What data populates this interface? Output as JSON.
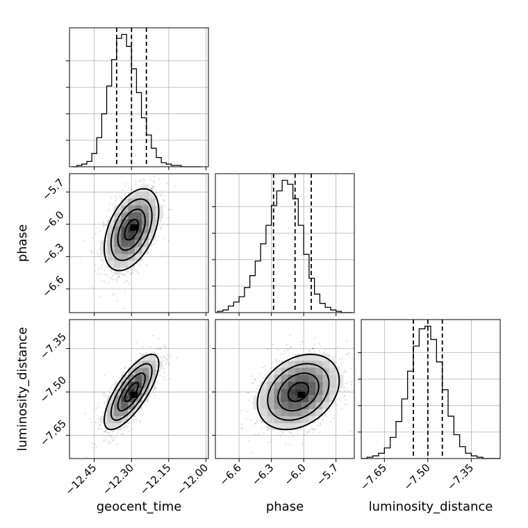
{
  "chart_data": {
    "type": "corner",
    "parameters": [
      {
        "name": "geocent_time",
        "label": "geocent_time",
        "range": [
          -12.55,
          -11.99
        ],
        "ticks": [
          -12.45,
          -12.3,
          -12.15,
          -12.0
        ],
        "tick_labels": [
          "−12.45",
          "−12.30",
          "−12.15",
          "−12.00"
        ],
        "quantiles": [
          -12.36,
          -12.3,
          -12.24
        ],
        "histogram": {
          "bin_edges": [
            -12.54,
            -12.52,
            -12.5,
            -12.48,
            -12.46,
            -12.44,
            -12.42,
            -12.4,
            -12.38,
            -12.36,
            -12.34,
            -12.32,
            -12.3,
            -12.28,
            -12.26,
            -12.24,
            -12.22,
            -12.2,
            -12.18,
            -12.16,
            -12.14,
            -12.12,
            -12.1,
            -12.08,
            -12.06,
            -12.04,
            -12.02
          ],
          "counts": [
            0,
            1,
            2,
            4,
            10,
            22,
            40,
            61,
            81,
            97,
            100,
            91,
            74,
            56,
            37,
            24,
            14,
            7,
            3,
            2,
            1,
            1,
            0,
            0,
            0,
            0
          ]
        }
      },
      {
        "name": "phase",
        "label": "phase",
        "range": [
          -6.82,
          -5.53
        ],
        "ticks": [
          -6.6,
          -6.3,
          -6.0,
          -5.7
        ],
        "tick_labels": [
          "−6.6",
          "−6.3",
          "−6.0",
          "−5.7"
        ],
        "quantiles": [
          -6.28,
          -6.08,
          -5.93
        ],
        "histogram": {
          "bin_edges": [
            -6.8,
            -6.75,
            -6.7,
            -6.65,
            -6.6,
            -6.55,
            -6.5,
            -6.45,
            -6.4,
            -6.35,
            -6.3,
            -6.25,
            -6.2,
            -6.15,
            -6.1,
            -6.05,
            -6.0,
            -5.95,
            -5.9,
            -5.85,
            -5.8,
            -5.75,
            -5.7,
            -5.65,
            -5.6,
            -5.55
          ],
          "counts": [
            1,
            2,
            5,
            8,
            12,
            19,
            28,
            39,
            52,
            66,
            81,
            92,
            100,
            97,
            86,
            66,
            44,
            26,
            14,
            7,
            4,
            2,
            1,
            0,
            0
          ]
        }
      },
      {
        "name": "luminosity_distance",
        "label": "luminosity_distance",
        "range": [
          -7.73,
          -7.25
        ],
        "ticks": [
          -7.65,
          -7.5,
          -7.35
        ],
        "tick_labels": [
          "−7.65",
          "−7.50",
          "−7.35"
        ],
        "quantiles": [
          -7.55,
          -7.5,
          -7.45
        ],
        "histogram": {
          "bin_edges": [
            -7.73,
            -7.71,
            -7.69,
            -7.67,
            -7.65,
            -7.63,
            -7.61,
            -7.59,
            -7.57,
            -7.55,
            -7.53,
            -7.51,
            -7.49,
            -7.47,
            -7.45,
            -7.43,
            -7.41,
            -7.39,
            -7.37,
            -7.35,
            -7.33,
            -7.31,
            -7.29,
            -7.27,
            -7.25
          ],
          "counts": [
            0,
            1,
            2,
            4,
            8,
            16,
            28,
            45,
            66,
            85,
            98,
            100,
            90,
            73,
            52,
            32,
            18,
            9,
            4,
            2,
            1,
            0,
            0,
            0
          ]
        }
      }
    ],
    "pairs": [
      {
        "x": "geocent_time",
        "y": "phase",
        "center": [
          -12.3,
          -6.05
        ],
        "sigma": [
          0.055,
          0.19
        ],
        "correlation": 0.45,
        "peak": [
          -12.29,
          -6.03
        ]
      },
      {
        "x": "geocent_time",
        "y": "luminosity_distance",
        "center": [
          -12.3,
          -7.5
        ],
        "sigma": [
          0.055,
          0.065
        ],
        "correlation": 0.75,
        "peak": [
          -12.29,
          -7.51
        ]
      },
      {
        "x": "phase",
        "y": "luminosity_distance",
        "center": [
          -6.05,
          -7.5
        ],
        "sigma": [
          0.19,
          0.065
        ],
        "correlation": 0.3,
        "peak": [
          -6.02,
          -7.51
        ]
      }
    ],
    "grid": true,
    "contour_levels_sigma": [
      0.5,
      1.0,
      1.5,
      2.0
    ],
    "colors": {
      "line": "#000000",
      "grid": "#b0b0b0",
      "scatter": "#000000"
    }
  }
}
